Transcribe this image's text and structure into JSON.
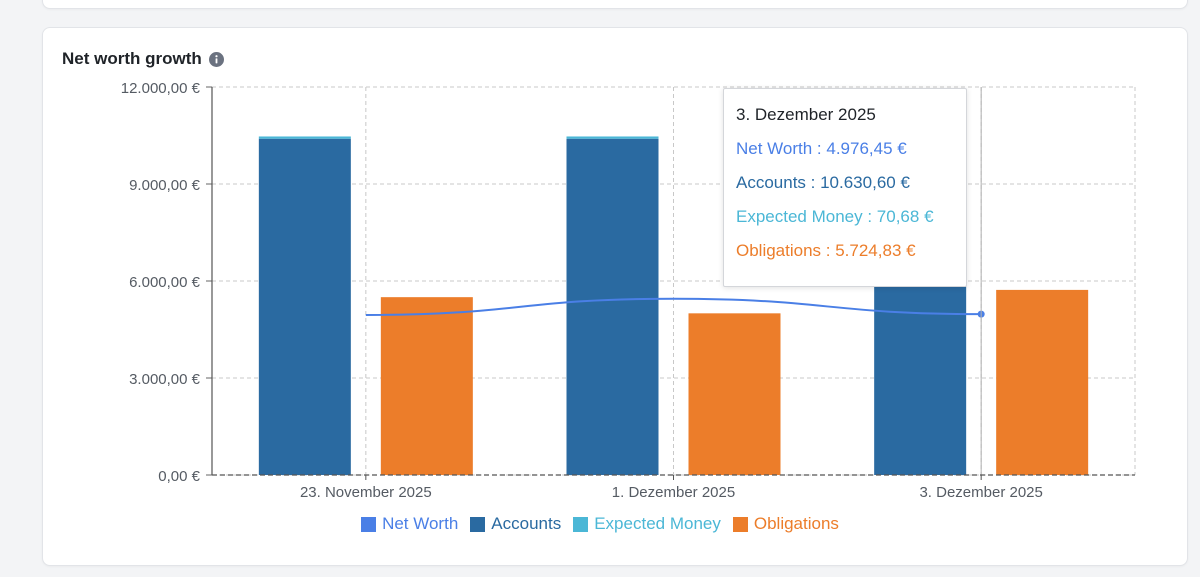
{
  "card": {
    "title": "Net worth growth",
    "info_icon": "info-icon"
  },
  "colors": {
    "net_worth": "#4a7fe6",
    "accounts": "#2a6aa1",
    "expected_money": "#4bb7d6",
    "obligations": "#ec7d2a",
    "grid": "#c8c8c8",
    "axis_text": "#555b63"
  },
  "chart_data": {
    "type": "bar",
    "title": "Net worth growth",
    "categories": [
      "23. November 2025",
      "1. Dezember 2025",
      "3. Dezember 2025"
    ],
    "y_ticks": [
      "0,00 €",
      "3.000,00 €",
      "6.000,00 €",
      "9.000,00 €",
      "12.000,00 €"
    ],
    "ylim": [
      0,
      12000
    ],
    "series": [
      {
        "name": "Net Worth",
        "kind": "line",
        "values": [
          4950,
          5450,
          4976.45
        ]
      },
      {
        "name": "Accounts",
        "kind": "bar",
        "stack": "assets",
        "values": [
          10400,
          10400,
          10630.6
        ]
      },
      {
        "name": "Expected Money",
        "kind": "bar",
        "stack": "assets",
        "values": [
          70,
          70,
          70.68
        ]
      },
      {
        "name": "Obligations",
        "kind": "bar",
        "stack": "liabilities",
        "values": [
          5500,
          5000,
          5724.83
        ]
      }
    ],
    "legend": [
      "Net Worth",
      "Accounts",
      "Expected Money",
      "Obligations"
    ],
    "legend_position": "bottom-center",
    "grid": true
  },
  "tooltip": {
    "title": "3. Dezember 2025",
    "rows": [
      {
        "label": "Net Worth : 4.976,45 €"
      },
      {
        "label": "Accounts : 10.630,60 €"
      },
      {
        "label": "Expected Money : 70,68 €"
      },
      {
        "label": "Obligations : 5.724,83 €"
      }
    ]
  }
}
